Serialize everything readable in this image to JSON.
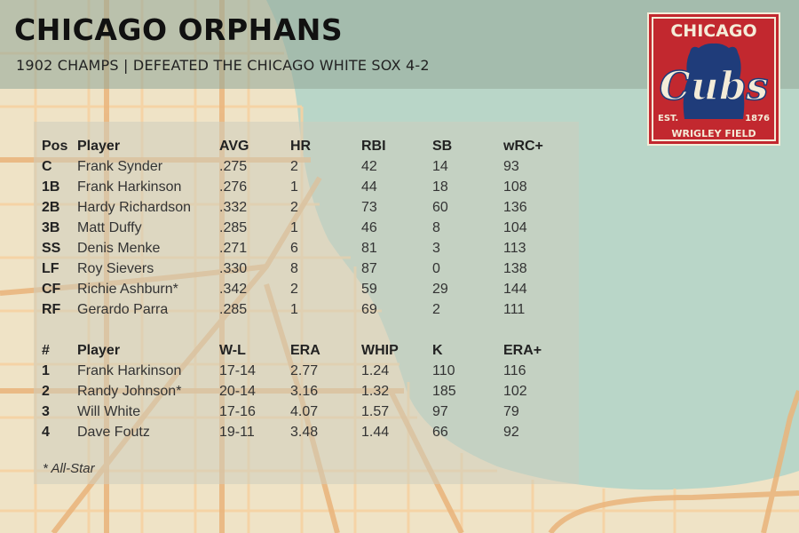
{
  "header": {
    "title": "CHICAGO ORPHANS",
    "subtitle": "1902 CHAMPS | DEFEATED THE CHICAGO WHITE SOX 4-2"
  },
  "logo": {
    "top_text": "CHICAGO",
    "main_text": "Cubs",
    "est_left": "EST.",
    "est_right": "1876",
    "bottom_text": "WRIGLEY FIELD",
    "colors": {
      "red": "#c2282f",
      "blue": "#1f3c7a",
      "cream": "#f4ecd8"
    },
    "icon": "bear-silhouette"
  },
  "colors": {
    "water": "#b9d6c8",
    "land": "#efe3c6",
    "major_road": "#eab47a",
    "minor_road": "#f6d2a2",
    "header_band": "#96aa9b"
  },
  "batting": {
    "headers": [
      "Pos",
      "Player",
      "AVG",
      "HR",
      "RBI",
      "SB",
      "wRC+"
    ],
    "rows": [
      [
        "C",
        "Frank Synder",
        ".275",
        "2",
        "42",
        "14",
        "93"
      ],
      [
        "1B",
        "Frank Harkinson",
        ".276",
        "1",
        "44",
        "18",
        "108"
      ],
      [
        "2B",
        "Hardy Richardson",
        ".332",
        "2",
        "73",
        "60",
        "136"
      ],
      [
        "3B",
        "Matt Duffy",
        ".285",
        "1",
        "46",
        "8",
        "104"
      ],
      [
        "SS",
        "Denis Menke",
        ".271",
        "6",
        "81",
        "3",
        "113"
      ],
      [
        "LF",
        "Roy Sievers",
        ".330",
        "8",
        "87",
        "0",
        "138"
      ],
      [
        "CF",
        "Richie Ashburn*",
        ".342",
        "2",
        "59",
        "29",
        "144"
      ],
      [
        "RF",
        "Gerardo Parra",
        ".285",
        "1",
        "69",
        "2",
        "111"
      ]
    ]
  },
  "pitching": {
    "headers": [
      "#",
      "Player",
      "W-L",
      "ERA",
      "WHIP",
      "K",
      "ERA+"
    ],
    "rows": [
      [
        "1",
        "Frank Harkinson",
        "17-14",
        "2.77",
        "1.24",
        "110",
        "116"
      ],
      [
        "2",
        "Randy Johnson*",
        "20-14",
        "3.16",
        "1.32",
        "185",
        "102"
      ],
      [
        "3",
        "Will White",
        "17-16",
        "4.07",
        "1.57",
        "97",
        "79"
      ],
      [
        "4",
        "Dave Foutz",
        "19-11",
        "3.48",
        "1.44",
        "66",
        "92"
      ]
    ]
  },
  "footnote": "* All-Star"
}
